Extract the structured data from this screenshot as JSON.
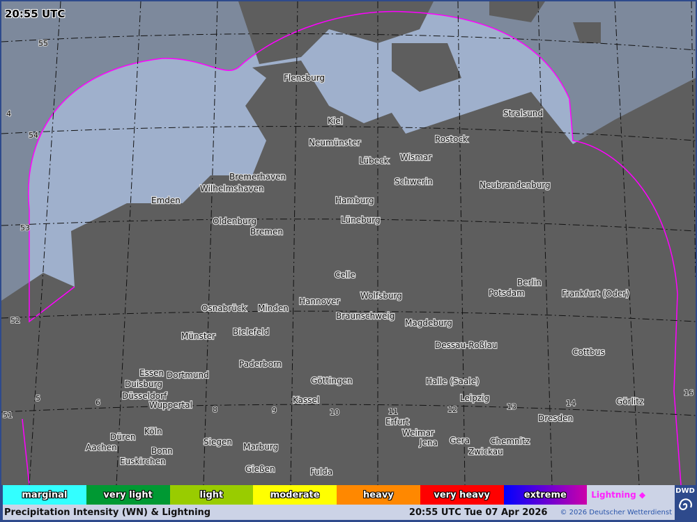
{
  "header": {
    "time": "20:55 UTC"
  },
  "map": {
    "cities": [
      "Flensburg",
      "Kiel",
      "Neumünster",
      "Stralsund",
      "Rostock",
      "Lübeck",
      "Wismar",
      "Bremerhaven",
      "Wilhelmshaven",
      "Schwerin",
      "Neubrandenburg",
      "Emden",
      "Hamburg",
      "Oldenburg",
      "Bremen",
      "Lüneburg",
      "Celle",
      "Berlin",
      "Wolfsburg",
      "Potsdam",
      "Frankfurt (Oder)",
      "Osnabrück",
      "Minden",
      "Hannover",
      "Braunschweig",
      "Magdeburg",
      "Bielefeld",
      "Münster",
      "Dessau-Roßlau",
      "Cottbus",
      "Paderborn",
      "Dortmund",
      "Göttingen",
      "Halle (Saale)",
      "Duisburg",
      "Essen",
      "Düsseldorf",
      "Kassel",
      "Leipzig",
      "Wuppertal",
      "Görlitz",
      "Dresden",
      "Köln",
      "Erfurt",
      "Weimar",
      "Siegen",
      "Jena",
      "Gera",
      "Chemnitz",
      "Düren",
      "Aachen",
      "Marburg",
      "Bonn",
      "Euskirchen",
      "Zwickau",
      "Gießen",
      "Fulda"
    ],
    "grid_labels": [
      "55",
      "4",
      "54",
      "53",
      "52",
      "51",
      "5",
      "6",
      "8",
      "9",
      "10",
      "11",
      "12",
      "13",
      "14",
      "16"
    ],
    "colors": {
      "land": "#5e5e5e",
      "sea": "#9fb0cc",
      "outside": "#7d899c",
      "radar_outline": "#ff00ff",
      "rivers": "#2a4fd0",
      "roads": "#a01818"
    }
  },
  "legend": {
    "items": [
      {
        "label": "marginal",
        "color": "#33ffff"
      },
      {
        "label": "very light",
        "color": "#009933"
      },
      {
        "label": "light",
        "color": "#99cc00"
      },
      {
        "label": "moderate",
        "color": "#ffff00"
      },
      {
        "label": "heavy",
        "color": "#ff8800"
      },
      {
        "label": "very heavy",
        "color": "#ff0000"
      },
      {
        "label": "extreme",
        "color": "#0000ff"
      }
    ],
    "lightning": "Lightning ◆"
  },
  "footer": {
    "title": "Precipitation Intensity (WN) & Lightning",
    "timestamp": "20:55 UTC Tue 07 Apr 2026",
    "copyright": "© 2026 Deutscher Wetterdienst"
  },
  "logo": {
    "text": "DWD"
  }
}
